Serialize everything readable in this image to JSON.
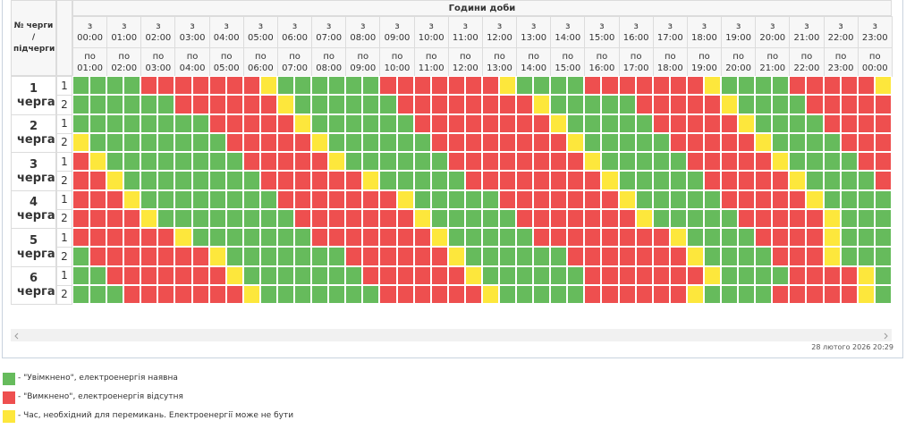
{
  "header": {
    "queue_label": "№ черги / підчерги",
    "hours_label": "Години доби",
    "from_prefix": "з",
    "to_prefix": "по",
    "from_times": [
      "00:00",
      "01:00",
      "02:00",
      "03:00",
      "04:00",
      "05:00",
      "06:00",
      "07:00",
      "08:00",
      "09:00",
      "10:00",
      "11:00",
      "12:00",
      "13:00",
      "14:00",
      "15:00",
      "16:00",
      "17:00",
      "18:00",
      "19:00",
      "20:00",
      "21:00",
      "22:00",
      "23:00"
    ],
    "to_times": [
      "01:00",
      "02:00",
      "03:00",
      "04:00",
      "05:00",
      "06:00",
      "07:00",
      "08:00",
      "09:00",
      "10:00",
      "11:00",
      "12:00",
      "13:00",
      "14:00",
      "15:00",
      "16:00",
      "17:00",
      "18:00",
      "19:00",
      "20:00",
      "21:00",
      "22:00",
      "23:00",
      "00:00"
    ]
  },
  "queues": [
    {
      "label": "1 черга",
      "subqueues": [
        {
          "label": "1",
          "cells": "000011111112000000111111120000111111120000111112"
        },
        {
          "label": "2",
          "cells": "000000111111200000011111111200000111112000011111"
        }
      ]
    },
    {
      "label": "2 черга",
      "subqueues": [
        {
          "label": "1",
          "cells": "000000001111120000001111111120000011111200001111"
        },
        {
          "label": "2",
          "cells": "200000000111112000000111111112000001111120000111"
        }
      ]
    },
    {
      "label": "3 черга",
      "subqueues": [
        {
          "label": "1",
          "cells": "120000000011111200000011111111200000111112000011"
        },
        {
          "label": "2",
          "cells": "112000000001111112000001111111120000011111200001"
        }
      ]
    },
    {
      "label": "4 черга",
      "subqueues": [
        {
          "label": "1",
          "cells": "111200000000111111120000011111112000001111120000"
        },
        {
          "label": "2",
          "cells": "111120000000011111112000001111111200000111112000"
        }
      ]
    },
    {
      "label": "5 черга",
      "subqueues": [
        {
          "label": "1",
          "cells": "111111200000001111111200000111111112000011112000"
        },
        {
          "label": "2",
          "cells": "011111112000000011111120000001111111200001112000"
        }
      ]
    },
    {
      "label": "6 черга",
      "subqueues": [
        {
          "label": "1",
          "cells": "001111111200000001111112000000111111120000111120"
        },
        {
          "label": "2",
          "cells": "000111111120000000111111200000111111200001111120"
        }
      ]
    }
  ],
  "timestamp": "28 лютого 2026 20:29",
  "legend": [
    {
      "color": "#66bb5c",
      "text": "- \"Увімкнено\", електроенергія наявна"
    },
    {
      "color": "#ee4f4f",
      "text": "- \"Вимкнено\", електроенергія відсутня"
    },
    {
      "color": "#fde73c",
      "text": "- Час, необхідний для перемикань. Електроенергії може не бути"
    }
  ]
}
